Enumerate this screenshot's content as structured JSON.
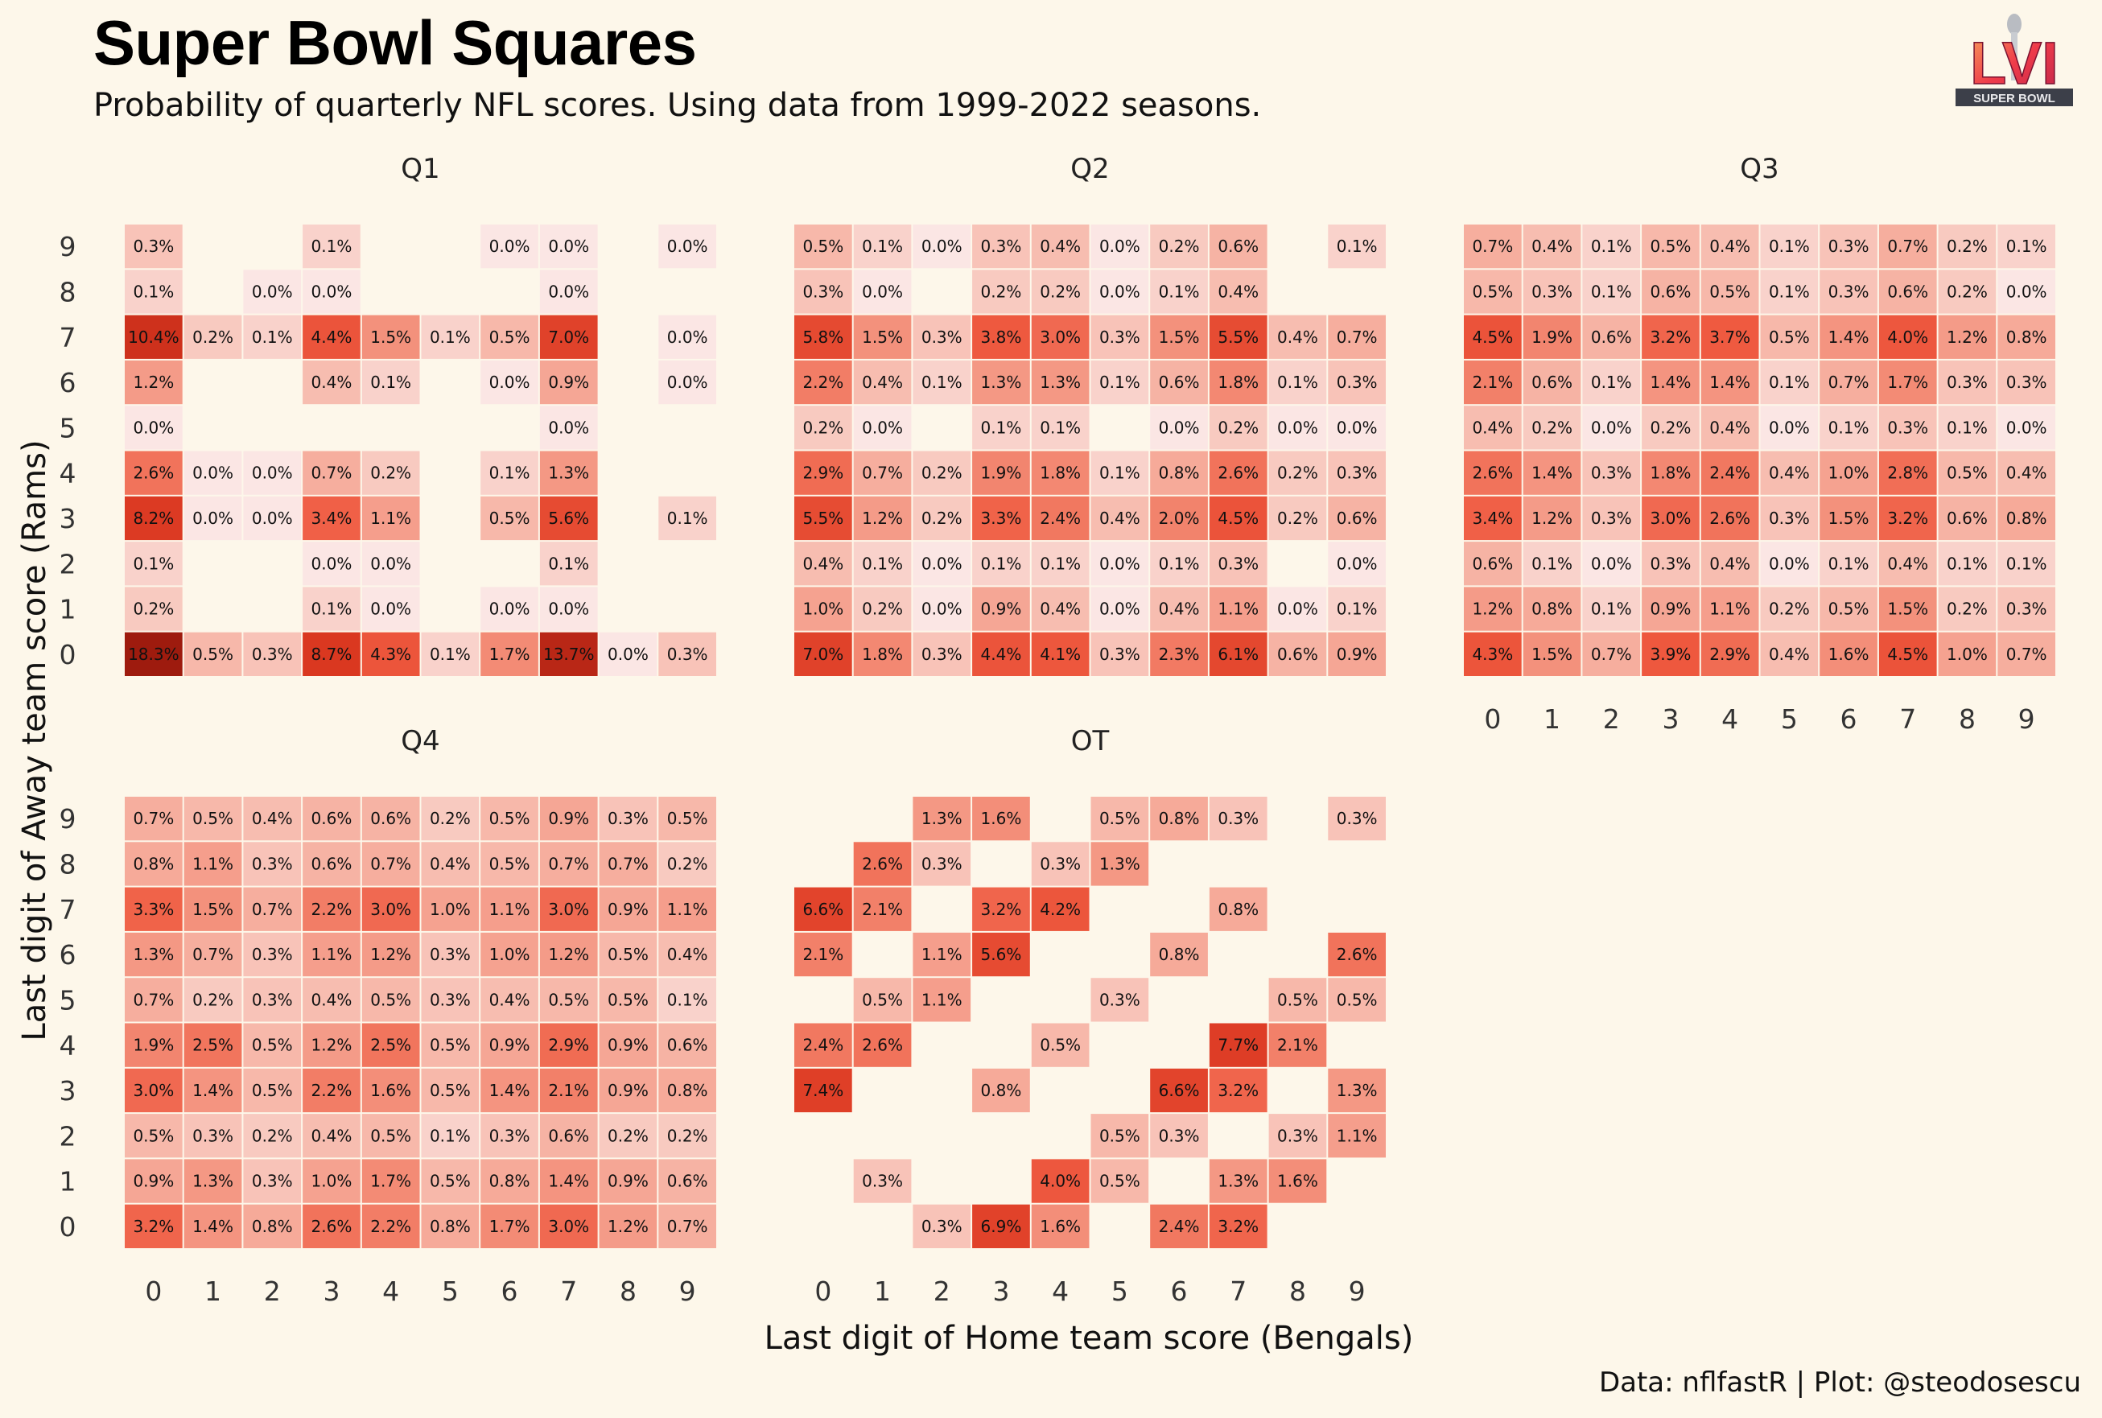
{
  "title": "Super Bowl Squares",
  "subtitle": "Probability of quarterly NFL scores. Using data from 1999-2022 seasons.",
  "caption": "Data: nflfastR | Plot: @steodosescu",
  "logo": {
    "name": "super-bowl-lvi-logo",
    "text": "SUPER BOWL",
    "roman": "LVI"
  },
  "colors": {
    "background": "#fdf7ea",
    "low": "#fbe5e0",
    "high": "#9e1b0e",
    "accent": "#f03b20"
  },
  "chart_data": {
    "type": "heatmap",
    "xlabel": "Last digit of Home team score (Bengals)",
    "ylabel": "Last digit of Away team score (Rams)",
    "x_ticks": [
      "0",
      "1",
      "2",
      "3",
      "4",
      "5",
      "6",
      "7",
      "8",
      "9"
    ],
    "y_ticks": [
      "9",
      "8",
      "7",
      "6",
      "5",
      "4",
      "3",
      "2",
      "1",
      "0"
    ],
    "value_unit": "%",
    "panels": [
      {
        "name": "Q1",
        "rows": [
          [
            0.3,
            null,
            null,
            0.1,
            null,
            null,
            0.0,
            0.0,
            null,
            0.0
          ],
          [
            0.1,
            null,
            0.0,
            0.0,
            null,
            null,
            null,
            0.0,
            null,
            null
          ],
          [
            10.4,
            0.2,
            0.1,
            4.4,
            1.5,
            0.1,
            0.5,
            7.0,
            null,
            0.0
          ],
          [
            1.2,
            null,
            null,
            0.4,
            0.1,
            null,
            0.0,
            0.9,
            null,
            0.0
          ],
          [
            0.0,
            null,
            null,
            null,
            null,
            null,
            null,
            0.0,
            null,
            null
          ],
          [
            2.6,
            0.0,
            0.0,
            0.7,
            0.2,
            null,
            0.1,
            1.3,
            null,
            null
          ],
          [
            8.2,
            0.0,
            0.0,
            3.4,
            1.1,
            null,
            0.5,
            5.6,
            null,
            0.1
          ],
          [
            0.1,
            null,
            null,
            0.0,
            0.0,
            null,
            null,
            0.1,
            null,
            null
          ],
          [
            0.2,
            null,
            null,
            0.1,
            0.0,
            null,
            0.0,
            0.0,
            null,
            null
          ],
          [
            18.3,
            0.5,
            0.3,
            8.7,
            4.3,
            0.1,
            1.7,
            13.7,
            0.0,
            0.3
          ]
        ]
      },
      {
        "name": "Q2",
        "rows": [
          [
            0.5,
            0.1,
            0.0,
            0.3,
            0.4,
            0.0,
            0.2,
            0.6,
            null,
            0.1
          ],
          [
            0.3,
            0.0,
            null,
            0.2,
            0.2,
            0.0,
            0.1,
            0.4,
            null,
            null
          ],
          [
            5.8,
            1.5,
            0.3,
            3.8,
            3.0,
            0.3,
            1.5,
            5.5,
            0.4,
            0.7
          ],
          [
            2.2,
            0.4,
            0.1,
            1.3,
            1.3,
            0.1,
            0.6,
            1.8,
            0.1,
            0.3
          ],
          [
            0.2,
            0.0,
            null,
            0.1,
            0.1,
            null,
            0.0,
            0.2,
            0.0,
            0.0
          ],
          [
            2.9,
            0.7,
            0.2,
            1.9,
            1.8,
            0.1,
            0.8,
            2.6,
            0.2,
            0.3
          ],
          [
            5.5,
            1.2,
            0.2,
            3.3,
            2.4,
            0.4,
            2.0,
            4.5,
            0.2,
            0.6
          ],
          [
            0.4,
            0.1,
            0.0,
            0.1,
            0.1,
            0.0,
            0.1,
            0.3,
            null,
            0.0
          ],
          [
            1.0,
            0.2,
            0.0,
            0.9,
            0.4,
            0.0,
            0.4,
            1.1,
            0.0,
            0.1
          ],
          [
            7.0,
            1.8,
            0.3,
            4.4,
            4.1,
            0.3,
            2.3,
            6.1,
            0.6,
            0.9
          ]
        ]
      },
      {
        "name": "Q3",
        "rows": [
          [
            0.7,
            0.4,
            0.1,
            0.5,
            0.4,
            0.1,
            0.3,
            0.7,
            0.2,
            0.1
          ],
          [
            0.5,
            0.3,
            0.1,
            0.6,
            0.5,
            0.1,
            0.3,
            0.6,
            0.2,
            0.0
          ],
          [
            4.5,
            1.9,
            0.6,
            3.2,
            3.7,
            0.5,
            1.4,
            4.0,
            1.2,
            0.8
          ],
          [
            2.1,
            0.6,
            0.1,
            1.4,
            1.4,
            0.1,
            0.7,
            1.7,
            0.3,
            0.3
          ],
          [
            0.4,
            0.2,
            0.0,
            0.2,
            0.4,
            0.0,
            0.1,
            0.3,
            0.1,
            0.0
          ],
          [
            2.6,
            1.4,
            0.3,
            1.8,
            2.4,
            0.4,
            1.0,
            2.8,
            0.5,
            0.4
          ],
          [
            3.4,
            1.2,
            0.3,
            3.0,
            2.6,
            0.3,
            1.5,
            3.2,
            0.6,
            0.8
          ],
          [
            0.6,
            0.1,
            0.0,
            0.3,
            0.4,
            0.0,
            0.1,
            0.4,
            0.1,
            0.1
          ],
          [
            1.2,
            0.8,
            0.1,
            0.9,
            1.1,
            0.2,
            0.5,
            1.5,
            0.2,
            0.3
          ],
          [
            4.3,
            1.5,
            0.7,
            3.9,
            2.9,
            0.4,
            1.6,
            4.5,
            1.0,
            0.7
          ]
        ]
      },
      {
        "name": "Q4",
        "rows": [
          [
            0.7,
            0.5,
            0.4,
            0.6,
            0.6,
            0.2,
            0.5,
            0.9,
            0.3,
            0.5
          ],
          [
            0.8,
            1.1,
            0.3,
            0.6,
            0.7,
            0.4,
            0.5,
            0.7,
            0.7,
            0.2
          ],
          [
            3.3,
            1.5,
            0.7,
            2.2,
            3.0,
            1.0,
            1.1,
            3.0,
            0.9,
            1.1
          ],
          [
            1.3,
            0.7,
            0.3,
            1.1,
            1.2,
            0.3,
            1.0,
            1.2,
            0.5,
            0.4
          ],
          [
            0.7,
            0.2,
            0.3,
            0.4,
            0.5,
            0.3,
            0.4,
            0.5,
            0.5,
            0.1
          ],
          [
            1.9,
            2.5,
            0.5,
            1.2,
            2.5,
            0.5,
            0.9,
            2.9,
            0.9,
            0.6
          ],
          [
            3.0,
            1.4,
            0.5,
            2.2,
            1.6,
            0.5,
            1.4,
            2.1,
            0.9,
            0.8
          ],
          [
            0.5,
            0.3,
            0.2,
            0.4,
            0.5,
            0.1,
            0.3,
            0.6,
            0.2,
            0.2
          ],
          [
            0.9,
            1.3,
            0.3,
            1.0,
            1.7,
            0.5,
            0.8,
            1.4,
            0.9,
            0.6
          ],
          [
            3.2,
            1.4,
            0.8,
            2.6,
            2.2,
            0.8,
            1.7,
            3.0,
            1.2,
            0.7
          ]
        ]
      },
      {
        "name": "OT",
        "rows": [
          [
            null,
            null,
            1.3,
            1.6,
            null,
            0.5,
            0.8,
            0.3,
            null,
            0.3
          ],
          [
            null,
            2.6,
            0.3,
            null,
            0.3,
            1.3,
            null,
            null,
            null,
            null
          ],
          [
            6.6,
            2.1,
            null,
            3.2,
            4.2,
            null,
            null,
            0.8,
            null,
            null
          ],
          [
            2.1,
            null,
            1.1,
            5.6,
            null,
            null,
            0.8,
            null,
            null,
            2.6
          ],
          [
            null,
            0.5,
            1.1,
            null,
            null,
            0.3,
            null,
            null,
            0.5,
            0.5
          ],
          [
            2.4,
            2.6,
            null,
            null,
            0.5,
            null,
            null,
            7.7,
            2.1,
            null
          ],
          [
            7.4,
            null,
            null,
            0.8,
            null,
            null,
            6.6,
            3.2,
            null,
            1.3
          ],
          [
            null,
            null,
            null,
            null,
            null,
            0.5,
            0.3,
            null,
            0.3,
            1.1
          ],
          [
            null,
            0.3,
            null,
            null,
            4.0,
            0.5,
            null,
            1.3,
            1.6,
            null
          ],
          [
            null,
            null,
            0.3,
            6.9,
            1.6,
            null,
            2.4,
            3.2,
            null,
            null
          ]
        ]
      }
    ]
  }
}
